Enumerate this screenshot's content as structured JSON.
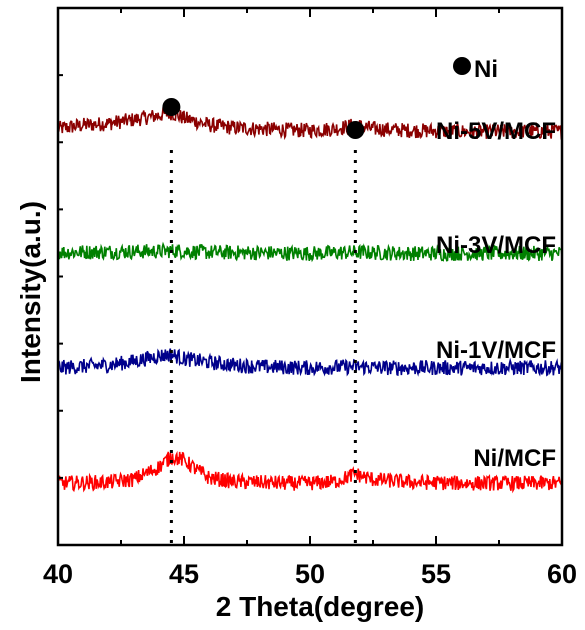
{
  "chart_data": {
    "type": "line",
    "xlabel": "2 Theta(degree)",
    "ylabel": "Intensity(a.u.)",
    "xlim": [
      40,
      60
    ],
    "xticks": [
      "40",
      "45",
      "50",
      "55",
      "60"
    ],
    "y_ticks_shown": false,
    "grid": false,
    "legend": {
      "marker": "filled-circle",
      "label": "Ni",
      "position": "top-right"
    },
    "peak_markers": [
      {
        "x": 44.5,
        "label": "Ni"
      },
      {
        "x": 51.8,
        "label": "Ni"
      }
    ],
    "reference_lines": [
      44.5,
      51.8
    ],
    "series": [
      {
        "name": "Ni-5V/MCF",
        "color": "#8B0000",
        "baseline": 0.775,
        "points": [
          [
            40,
            0.775
          ],
          [
            41,
            0.782
          ],
          [
            42,
            0.785
          ],
          [
            43,
            0.792
          ],
          [
            44,
            0.8
          ],
          [
            44.5,
            0.805
          ],
          [
            45,
            0.795
          ],
          [
            46,
            0.782
          ],
          [
            47,
            0.777
          ],
          [
            48,
            0.775
          ],
          [
            49,
            0.773
          ],
          [
            50,
            0.772
          ],
          [
            51,
            0.775
          ],
          [
            51.8,
            0.782
          ],
          [
            52.5,
            0.775
          ],
          [
            54,
            0.772
          ],
          [
            56,
            0.77
          ],
          [
            58,
            0.77
          ],
          [
            60,
            0.77
          ]
        ]
      },
      {
        "name": "Ni-3V/MCF",
        "color": "#008000",
        "baseline": 0.545,
        "points": [
          [
            40,
            0.545
          ],
          [
            42,
            0.546
          ],
          [
            44,
            0.547
          ],
          [
            44.5,
            0.548
          ],
          [
            46,
            0.545
          ],
          [
            48,
            0.544
          ],
          [
            50,
            0.543
          ],
          [
            51.8,
            0.545
          ],
          [
            54,
            0.543
          ],
          [
            56,
            0.543
          ],
          [
            58,
            0.543
          ],
          [
            60,
            0.543
          ]
        ]
      },
      {
        "name": "Ni-1V/MCF",
        "color": "#00008B",
        "baseline": 0.33,
        "points": [
          [
            40,
            0.33
          ],
          [
            42,
            0.335
          ],
          [
            43,
            0.342
          ],
          [
            44,
            0.352
          ],
          [
            44.5,
            0.355
          ],
          [
            45,
            0.347
          ],
          [
            46,
            0.34
          ],
          [
            47,
            0.335
          ],
          [
            48,
            0.332
          ],
          [
            50,
            0.33
          ],
          [
            51.8,
            0.332
          ],
          [
            53,
            0.33
          ],
          [
            55,
            0.33
          ],
          [
            58,
            0.33
          ],
          [
            60,
            0.33
          ]
        ]
      },
      {
        "name": "Ni/MCF",
        "color": "#FF0000",
        "baseline": 0.115,
        "points": [
          [
            40,
            0.115
          ],
          [
            42,
            0.117
          ],
          [
            43,
            0.122
          ],
          [
            44,
            0.145
          ],
          [
            44.5,
            0.165
          ],
          [
            45,
            0.158
          ],
          [
            45.5,
            0.14
          ],
          [
            46,
            0.125
          ],
          [
            47,
            0.118
          ],
          [
            49,
            0.115
          ],
          [
            50,
            0.115
          ],
          [
            51,
            0.118
          ],
          [
            51.8,
            0.132
          ],
          [
            52.5,
            0.122
          ],
          [
            54,
            0.117
          ],
          [
            56,
            0.115
          ],
          [
            58,
            0.115
          ],
          [
            60,
            0.115
          ]
        ]
      }
    ]
  },
  "colors": {
    "axis": "#000000",
    "marker": "#000000"
  }
}
